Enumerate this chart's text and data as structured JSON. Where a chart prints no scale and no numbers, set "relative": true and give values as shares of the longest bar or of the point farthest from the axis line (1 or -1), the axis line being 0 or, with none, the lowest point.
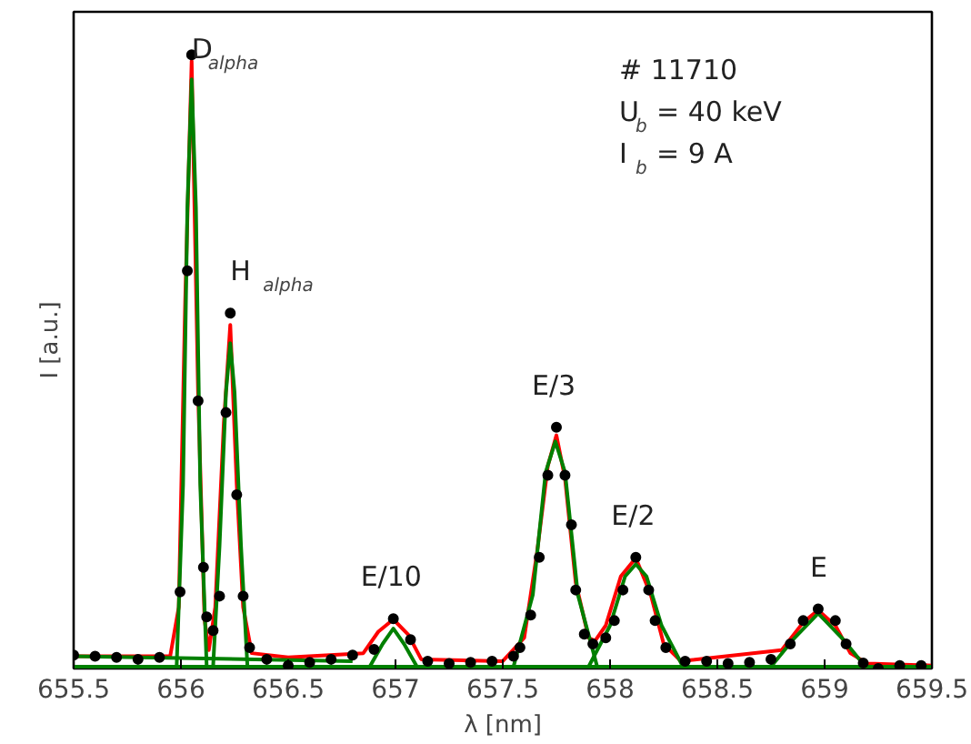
{
  "chart_data": {
    "type": "line",
    "relative": true,
    "xlabel": "λ [nm]",
    "ylabel": "I [a.u.]",
    "xlim": [
      655.5,
      659.5
    ],
    "xticks": [
      655.5,
      656.0,
      656.5,
      657.0,
      657.5,
      658.0,
      658.5,
      659.0,
      659.5
    ],
    "tick_labels": "x",
    "grid": false,
    "annotations": [
      {
        "text": "D$_{alpha}$",
        "x": 656.05,
        "y": 1.0
      },
      {
        "text": "H $_{alpha}$",
        "x": 656.23,
        "y": 0.579
      },
      {
        "text": "E/10",
        "x": 656.99,
        "y": 0.081
      },
      {
        "text": "E/3",
        "x": 657.75,
        "y": 0.393
      },
      {
        "text": "E/2",
        "x": 658.12,
        "y": 0.181
      },
      {
        "text": "E",
        "x": 658.97,
        "y": 0.097
      },
      "# 11710",
      "U$_{b}$ = 40 keV",
      "I$_{b}$ = 9 A"
    ],
    "series": [
      {
        "type": "scatter",
        "marker": "circle",
        "color": "#000000",
        "x": [
          655.5,
          655.6,
          655.7,
          655.8,
          655.9,
          655.996,
          656.03,
          656.05,
          656.08,
          656.105,
          656.12,
          656.15,
          656.18,
          656.21,
          656.23,
          656.26,
          656.29,
          656.32,
          656.4,
          656.5,
          656.6,
          656.7,
          656.8,
          656.9,
          656.99,
          657.07,
          657.15,
          657.25,
          657.35,
          657.45,
          657.55,
          657.58,
          657.63,
          657.67,
          657.71,
          657.75,
          657.79,
          657.82,
          657.84,
          657.88,
          657.92,
          657.98,
          658.02,
          658.06,
          658.12,
          658.18,
          658.21,
          658.26,
          658.35,
          658.45,
          658.55,
          658.65,
          658.75,
          658.84,
          658.9,
          658.97,
          659.05,
          659.1,
          659.18,
          659.25,
          659.35,
          659.45
        ],
        "values": [
          0.022,
          0.02,
          0.018,
          0.015,
          0.018,
          0.125,
          0.648,
          1.0,
          0.436,
          0.165,
          0.084,
          0.062,
          0.118,
          0.417,
          0.579,
          0.283,
          0.118,
          0.034,
          0.015,
          0.005,
          0.01,
          0.015,
          0.022,
          0.031,
          0.081,
          0.047,
          0.012,
          0.008,
          0.01,
          0.012,
          0.02,
          0.034,
          0.087,
          0.181,
          0.315,
          0.393,
          0.315,
          0.234,
          0.128,
          0.056,
          0.04,
          0.05,
          0.078,
          0.128,
          0.181,
          0.128,
          0.078,
          0.034,
          0.012,
          0.012,
          0.008,
          0.01,
          0.015,
          0.04,
          0.078,
          0.097,
          0.078,
          0.04,
          0.009,
          0.0,
          0.005,
          0.005
        ]
      },
      {
        "color": "#ff0000",
        "x": [
          655.5,
          655.95,
          655.99,
          656.02,
          656.05,
          656.08,
          656.11,
          656.13,
          656.16,
          656.2,
          656.23,
          656.26,
          656.29,
          656.33,
          656.5,
          656.85,
          656.92,
          656.99,
          657.06,
          657.12,
          657.5,
          657.6,
          657.66,
          657.71,
          657.75,
          657.79,
          657.84,
          657.9,
          657.93,
          657.98,
          658.05,
          658.12,
          658.19,
          658.25,
          658.33,
          658.8,
          658.9,
          658.97,
          659.05,
          659.12,
          659.2,
          659.5
        ],
        "values": [
          0.02,
          0.02,
          0.1,
          0.6,
          0.99,
          0.45,
          0.08,
          0.03,
          0.1,
          0.4,
          0.56,
          0.3,
          0.1,
          0.025,
          0.018,
          0.025,
          0.06,
          0.08,
          0.055,
          0.015,
          0.012,
          0.05,
          0.19,
          0.33,
          0.38,
          0.31,
          0.14,
          0.05,
          0.045,
          0.07,
          0.15,
          0.18,
          0.12,
          0.04,
          0.012,
          0.03,
          0.075,
          0.095,
          0.07,
          0.025,
          0.008,
          0.005
        ]
      },
      {
        "type": "line",
        "color": "#008000",
        "x": [
          655.5,
          659.5
        ],
        "values": [
          0.003,
          0.003
        ]
      },
      {
        "type": "line",
        "color": "#008000",
        "x": [
          655.5,
          656.8
        ],
        "values": [
          0.02,
          0.012
        ]
      },
      {
        "type": "line",
        "color": "#008000",
        "x": [
          655.98,
          656.01,
          656.03,
          656.05,
          656.07,
          656.09,
          656.12
        ],
        "values": [
          0.003,
          0.3,
          0.75,
          0.96,
          0.75,
          0.3,
          0.003
        ]
      },
      {
        "type": "line",
        "color": "#008000",
        "x": [
          656.15,
          656.18,
          656.21,
          656.23,
          656.25,
          656.28,
          656.31
        ],
        "values": [
          0.003,
          0.2,
          0.45,
          0.53,
          0.45,
          0.2,
          0.003
        ]
      },
      {
        "type": "line",
        "color": "#008000",
        "x": [
          656.88,
          656.94,
          656.99,
          657.04,
          657.1
        ],
        "values": [
          0.003,
          0.04,
          0.065,
          0.04,
          0.003
        ]
      },
      {
        "type": "line",
        "color": "#008000",
        "x": [
          657.55,
          657.64,
          657.7,
          657.745,
          657.79,
          657.85,
          657.94
        ],
        "values": [
          0.003,
          0.12,
          0.32,
          0.37,
          0.32,
          0.12,
          0.003
        ]
      },
      {
        "type": "line",
        "color": "#008000",
        "x": [
          657.9,
          658.0,
          658.07,
          658.12,
          658.17,
          658.24,
          658.34
        ],
        "values": [
          0.003,
          0.07,
          0.15,
          0.17,
          0.15,
          0.07,
          0.003
        ]
      },
      {
        "type": "line",
        "color": "#008000",
        "x": [
          658.75,
          658.86,
          658.97,
          659.08,
          659.19
        ],
        "values": [
          0.003,
          0.05,
          0.09,
          0.05,
          0.003
        ]
      }
    ]
  }
}
